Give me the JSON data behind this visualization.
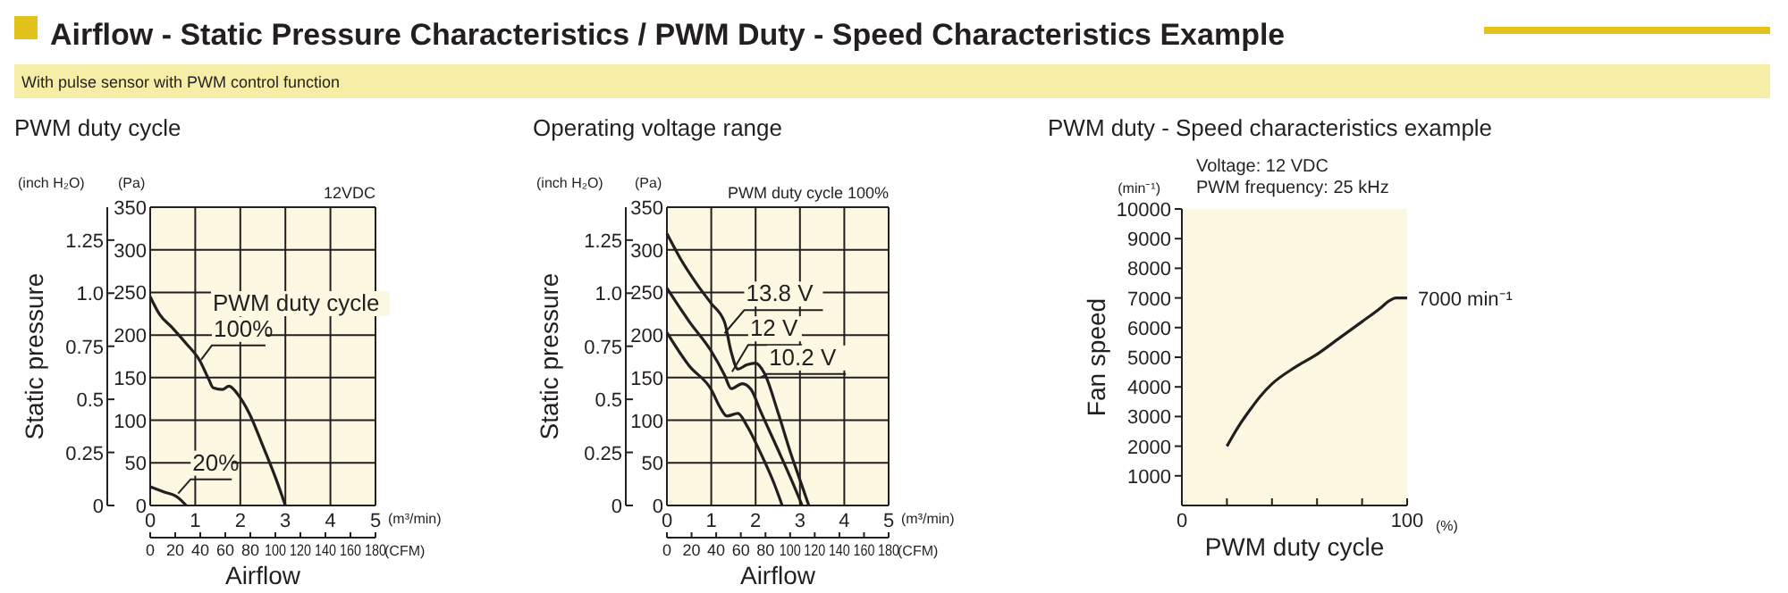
{
  "chart_data": [
    {
      "type": "line",
      "title": "PWM duty cycle",
      "xlabel": "Airflow",
      "ylabel": "(Pa)",
      "y2label": "Static pressure",
      "x2label": "(CFM)",
      "xlim": [
        0,
        5
      ],
      "xticks": [
        0,
        1,
        2,
        3,
        4,
        5
      ],
      "ylim": [
        0,
        350
      ],
      "yticks": [
        0,
        50,
        100,
        150,
        200,
        250,
        300,
        350
      ],
      "y2lim": [
        0,
        1.405
      ],
      "y2ticks": [
        0,
        0.25,
        0.5,
        0.75,
        {
          "value": 1,
          "label": "1.0"
        },
        1.25
      ],
      "x2lim": [
        0,
        180
      ],
      "x2ticks": [
        0,
        20,
        40,
        60,
        80,
        100,
        120,
        140,
        160,
        180
      ],
      "grid": true,
      "series": [
        {
          "color": "#231f20",
          "x": [
            0,
            0.2,
            0.5,
            0.8,
            1.1,
            1.3,
            1.4,
            1.6,
            1.75,
            1.95,
            2.2,
            2.5,
            2.8,
            3.0
          ],
          "values": [
            245,
            225,
            208,
            190,
            170,
            148,
            138,
            136,
            140,
            130,
            108,
            70,
            30,
            0
          ]
        },
        {
          "color": "#231f20",
          "x": [
            0,
            0.3,
            0.6,
            0.8
          ],
          "values": [
            22,
            16,
            10,
            0
          ]
        }
      ],
      "annotations": [
        "Airflow - Static Pressure Characteristics / PWM Duty - Speed Characteristics Example",
        "With pulse sensor with PWM control function",
        "12VDC",
        "PWM duty cycle",
        "(inch H₂O)",
        "(m³/min)",
        {
          "text": "100%",
          "x": 1.13,
          "y": 171
        },
        {
          "text": "20%",
          "x": 0.62,
          "y": 14
        }
      ]
    },
    {
      "type": "line",
      "title": "Operating voltage range",
      "xlabel": "Airflow",
      "ylabel": "(Pa)",
      "y2label": "Static pressure",
      "x2label": "(CFM)",
      "xlim": [
        0,
        5
      ],
      "xticks": [
        0,
        1,
        2,
        3,
        4,
        5
      ],
      "ylim": [
        0,
        350
      ],
      "yticks": [
        0,
        50,
        100,
        150,
        200,
        250,
        300,
        350
      ],
      "y2lim": [
        0,
        1.405
      ],
      "y2ticks": [
        0,
        0.25,
        0.5,
        0.75,
        {
          "value": 1,
          "label": "1.0"
        },
        1.25
      ],
      "x2lim": [
        0,
        180
      ],
      "x2ticks": [
        0,
        20,
        40,
        60,
        80,
        100,
        120,
        140,
        160,
        180
      ],
      "grid": true,
      "series": [
        {
          "color": "#231f20",
          "x": [
            0,
            0.3,
            0.7,
            1.0,
            1.3,
            1.45,
            1.6,
            1.8,
            2.0,
            2.2,
            2.5,
            2.8,
            3.0,
            3.2
          ],
          "values": [
            319,
            290,
            258,
            237,
            215,
            180,
            160,
            165,
            167,
            155,
            110,
            60,
            30,
            0
          ]
        },
        {
          "color": "#231f20",
          "x": [
            0,
            0.5,
            1.0,
            1.3,
            1.45,
            1.7,
            1.9,
            2.1,
            2.5,
            2.8,
            3.05
          ],
          "values": [
            255,
            216,
            181,
            153,
            137,
            143,
            136,
            112,
            66,
            31,
            0
          ]
        },
        {
          "color": "#231f20",
          "x": [
            0,
            0.5,
            1.0,
            1.2,
            1.35,
            1.6,
            1.8,
            2.1,
            2.4,
            2.6
          ],
          "values": [
            203,
            164,
            136,
            115,
            105,
            108,
            94,
            63,
            28,
            0
          ]
        }
      ],
      "annotations": [
        "PWM duty cycle 100%",
        "(inch H₂O)",
        "(m³/min)",
        {
          "text": "13.8 V",
          "x": 1.3,
          "y": 202
        },
        {
          "text": "12 V",
          "x": 1.47,
          "y": 157
        },
        {
          "text": "10.2 V",
          "x": 2.1,
          "y": 150
        }
      ]
    },
    {
      "type": "line",
      "title": "PWM duty - Speed characteristics example",
      "xlabel": "PWM duty cycle",
      "ylabel": "Fan speed",
      "xlim": [
        0,
        100
      ],
      "xticks": [
        0,
        {
          "value": 20,
          "label": null
        },
        {
          "value": 40,
          "label": null
        },
        {
          "value": 60,
          "label": null
        },
        {
          "value": 80,
          "label": null
        },
        100
      ],
      "ylim": [
        0,
        10000
      ],
      "yticks": [
        1000,
        2000,
        3000,
        4000,
        5000,
        6000,
        7000,
        8000,
        9000,
        10000
      ],
      "grid": false,
      "series": [
        {
          "color": "#231f20",
          "x": [
            20,
            25,
            30,
            35,
            40,
            50,
            60,
            70,
            80,
            88,
            92,
            95,
            100
          ],
          "values": [
            2000,
            2650,
            3200,
            3700,
            4100,
            4650,
            5100,
            5650,
            6200,
            6650,
            6900,
            7000,
            7000
          ]
        }
      ],
      "annotations": [
        "Voltage: 12 VDC",
        "PWM frequency: 25 kHz",
        "(min⁻¹)",
        "(%)",
        {
          "text": "7000 min⁻¹",
          "x": 100,
          "y": 7000
        }
      ]
    }
  ]
}
